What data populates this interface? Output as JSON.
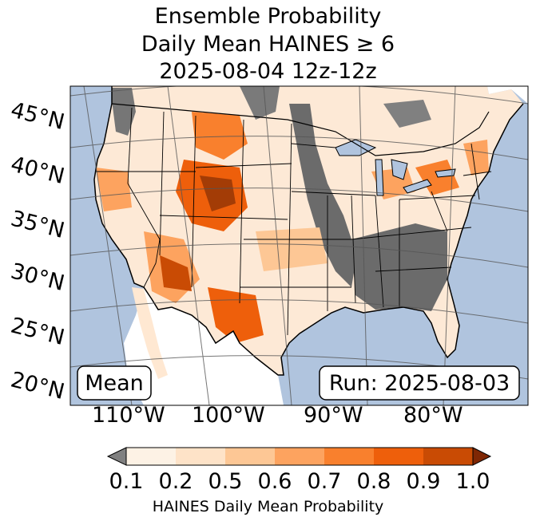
{
  "title": {
    "line1": "Ensemble Probability",
    "line2": "Daily Mean HAINES ≥ 6",
    "line3": "2025-08-04 12z-12z"
  },
  "map": {
    "projection": "conus",
    "colors": {
      "ocean": "#b0c4de",
      "land": "#ffffff",
      "nodata": "#777777"
    },
    "lat_labels": [
      "45°N",
      "40°N",
      "35°N",
      "30°N",
      "25°N",
      "20°N"
    ],
    "lon_labels": [
      "110°W",
      "100°W",
      "90°W",
      "80°W"
    ],
    "stat_box": "Mean",
    "run_box": "Run: 2025-08-03"
  },
  "colorbar": {
    "ticks": [
      "0.1",
      "0.2",
      "0.5",
      "0.6",
      "0.7",
      "0.8",
      "0.9",
      "1.0"
    ],
    "colors": [
      "#fdf2e5",
      "#fee3c8",
      "#fdc795",
      "#fda35f",
      "#f9802d",
      "#ee5f0b",
      "#c94b04"
    ],
    "under_color": "#808080",
    "over_color": "#7f2704",
    "label": "HAINES Daily Mean Probability"
  }
}
